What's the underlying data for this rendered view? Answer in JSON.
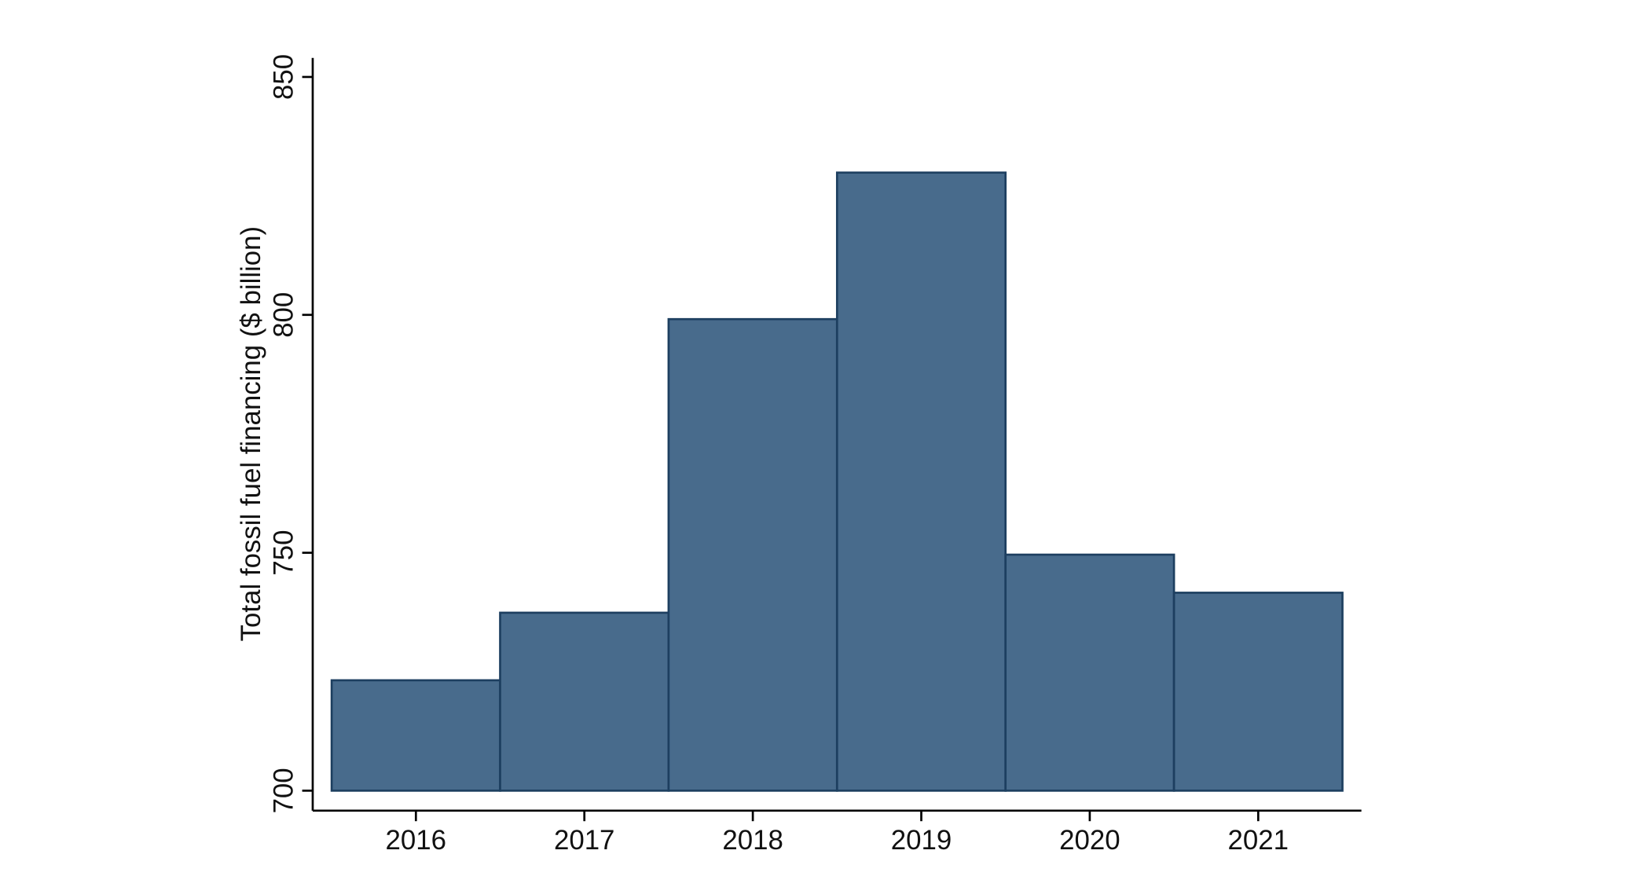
{
  "chart_data": {
    "type": "bar",
    "y_label": "Total fossil fuel financing ($ billion)",
    "categories": [
      "2016",
      "2017",
      "2018",
      "2019",
      "2020",
      "2021"
    ],
    "values": [
      723.2,
      737.4,
      799.1,
      829.9,
      749.6,
      741.6
    ],
    "color": "#486b8c",
    "edge_color": "#1d3f60",
    "ylim": [
      695.8,
      854
    ],
    "yticks": [
      700,
      750,
      800,
      850
    ],
    "grid": false
  }
}
